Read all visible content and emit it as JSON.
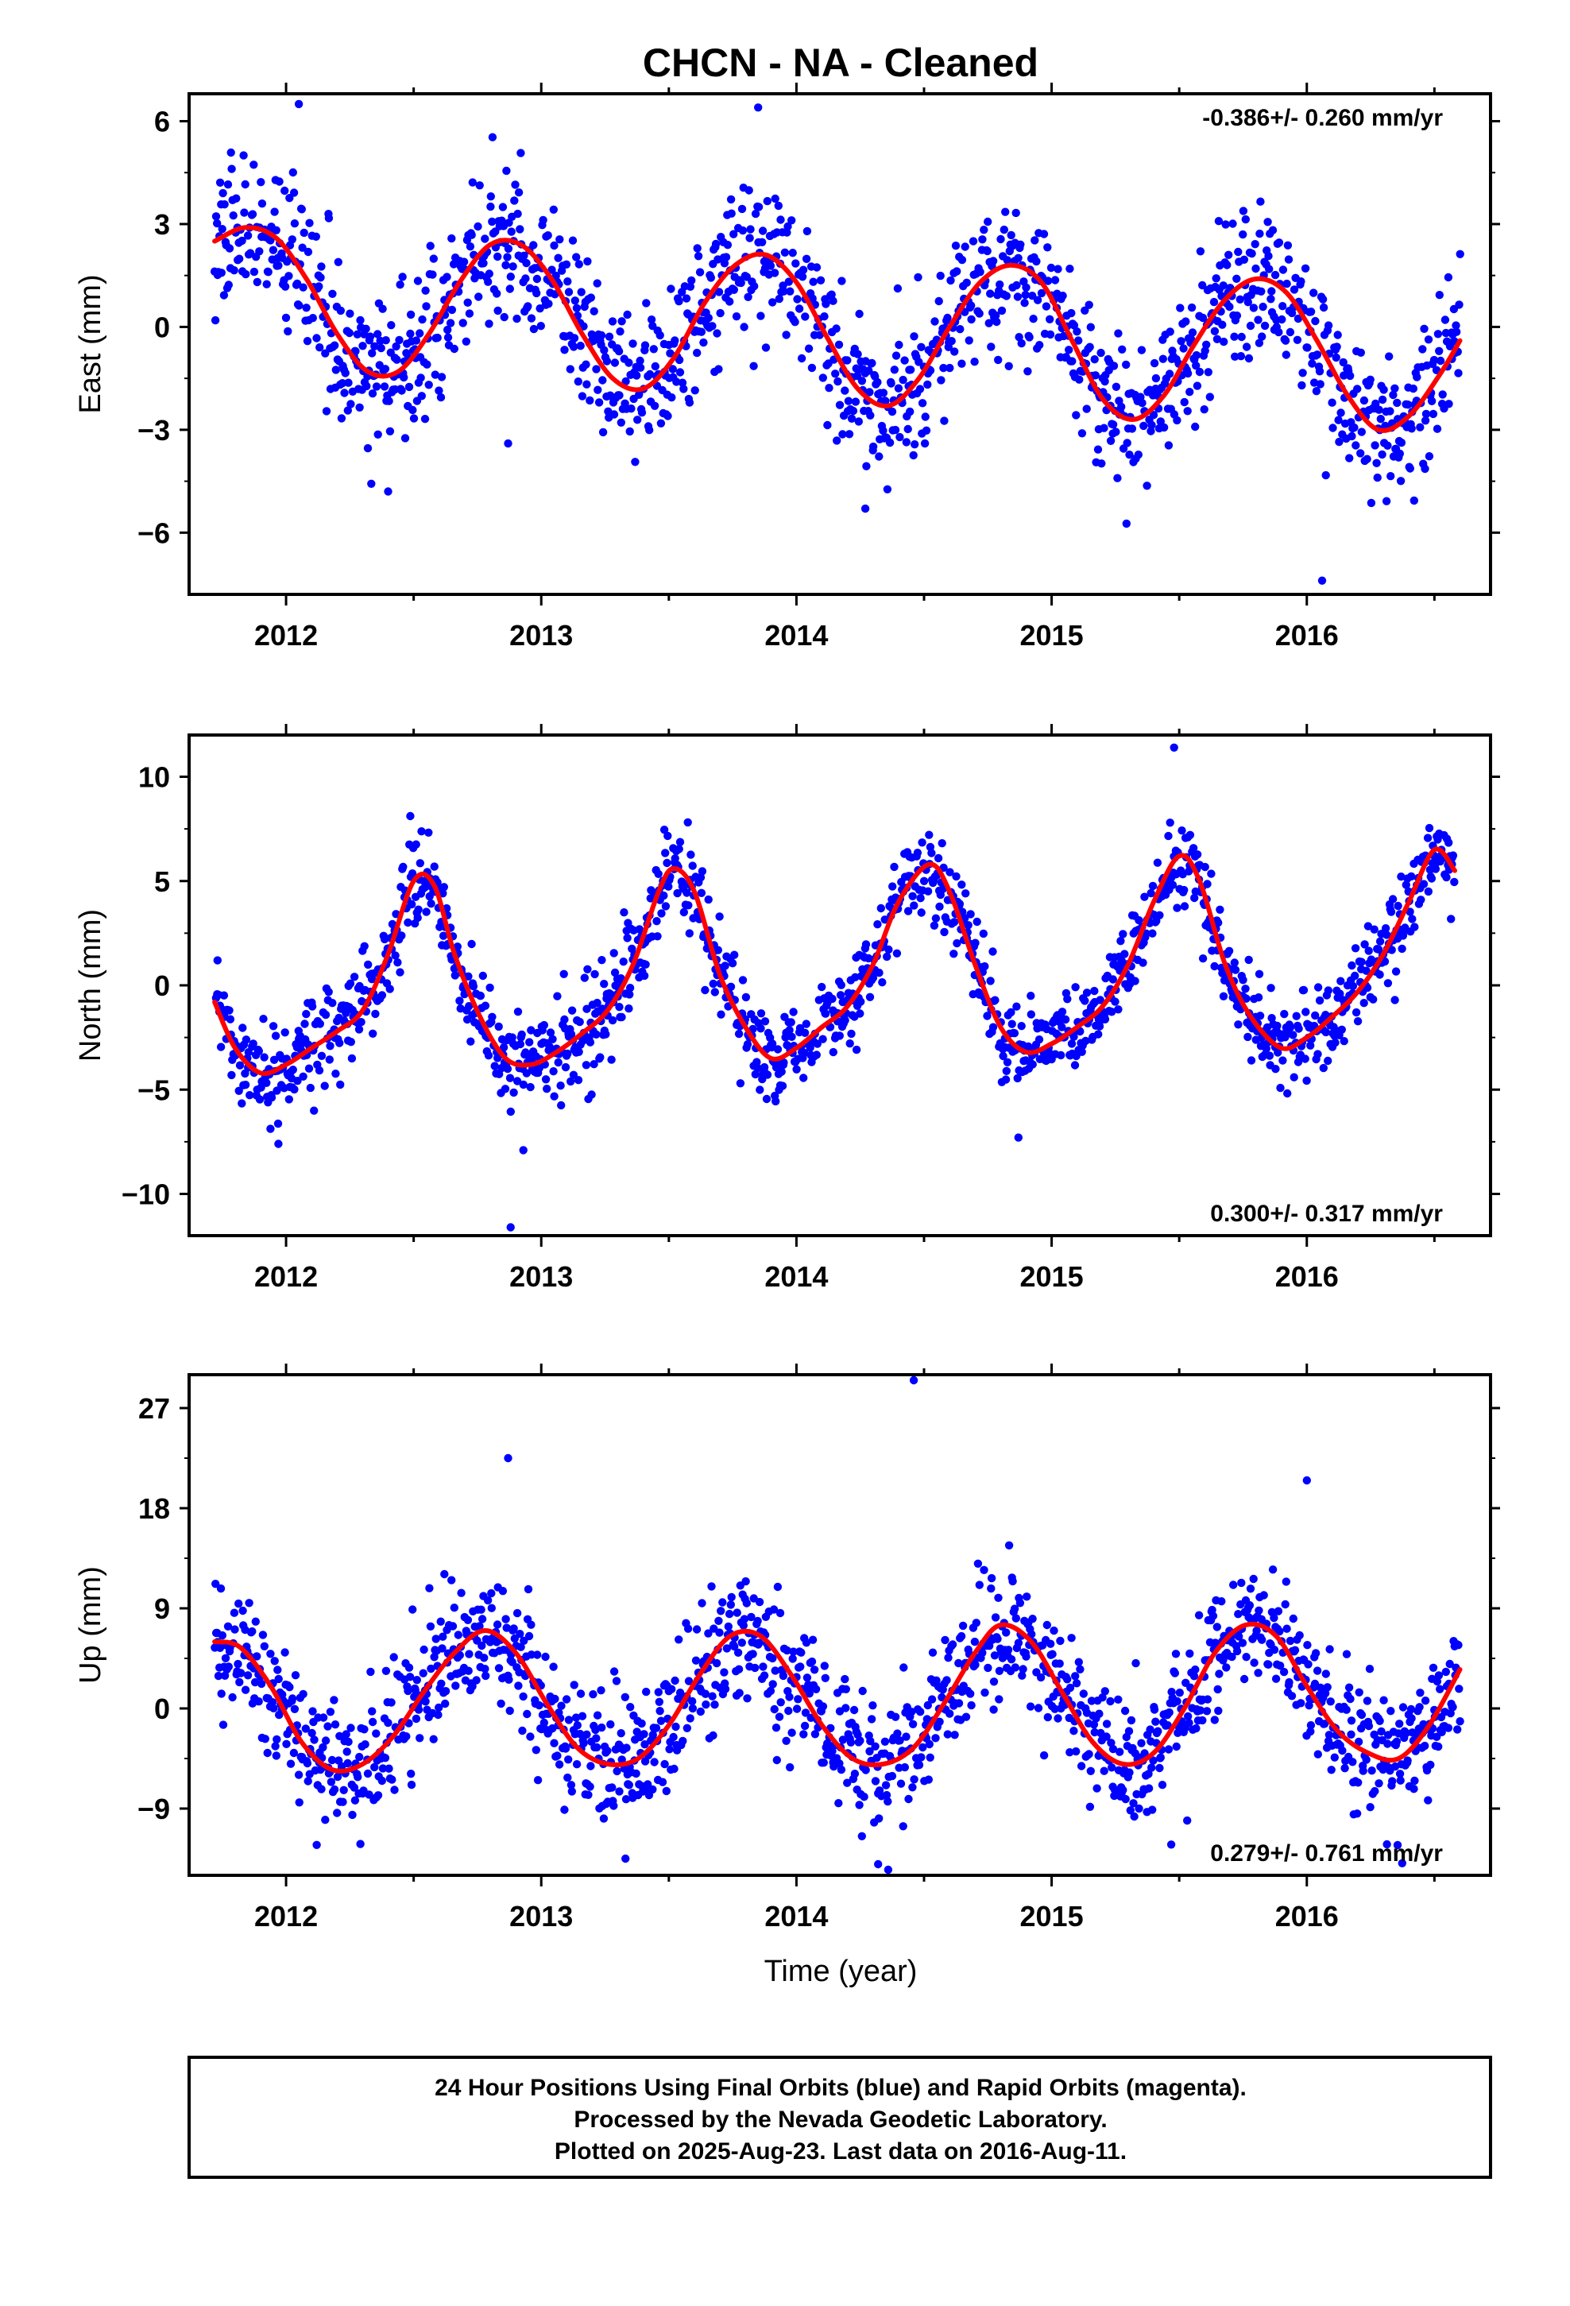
{
  "title": "CHCN  - NA - Cleaned",
  "x_axis_label": "Time (year)",
  "footer": {
    "line1": "24 Hour Positions Using Final Orbits (blue) and Rapid Orbits (magenta).",
    "line2": "Processed by the Nevada Geodetic Laboratory.",
    "line3": "Plotted on 2025-Aug-23. Last data on 2016-Aug-11."
  },
  "colors": {
    "points": "#0000ff",
    "model": "#ff0000",
    "axes": "#000000"
  },
  "chart_data": [
    {
      "type": "scatter",
      "name": "east",
      "ylabel": "East (mm)",
      "xlim": [
        2011.62,
        2016.72
      ],
      "ylim": [
        -7.8,
        6.8
      ],
      "yticks": [
        -6,
        -3,
        0,
        3,
        6
      ],
      "ytick_labels": [
        "−6",
        "−3",
        "0",
        "3",
        "6"
      ],
      "xticks": [
        2012,
        2013,
        2014,
        2015,
        2016
      ],
      "xtick_labels": [
        "2012",
        "2013",
        "2014",
        "2015",
        "2016"
      ],
      "rate_text": "-0.386+/- 0.260 mm/yr",
      "rate_position": "top-right",
      "model": {
        "x": [
          2011.72,
          2011.84,
          2011.96,
          2012.08,
          2012.2,
          2012.32,
          2012.44,
          2012.56,
          2012.68,
          2012.8,
          2012.92,
          2013.04,
          2013.16,
          2013.28,
          2013.4,
          2013.52,
          2013.64,
          2013.76,
          2013.88,
          2014.0,
          2014.12,
          2014.24,
          2014.36,
          2014.48,
          2014.6,
          2014.72,
          2014.84,
          2014.96,
          2015.08,
          2015.2,
          2015.32,
          2015.44,
          2015.56,
          2015.68,
          2015.8,
          2015.92,
          2016.04,
          2016.16,
          2016.28,
          2016.4,
          2016.52,
          2016.6
        ],
        "y": [
          2.5,
          2.9,
          2.6,
          1.4,
          -0.2,
          -1.3,
          -1.3,
          -0.2,
          1.3,
          2.4,
          2.4,
          1.4,
          -0.2,
          -1.5,
          -1.8,
          -0.9,
          0.7,
          1.8,
          2.1,
          1.3,
          -0.3,
          -1.8,
          -2.3,
          -1.5,
          0.0,
          1.3,
          1.8,
          1.3,
          -0.4,
          -2.1,
          -2.7,
          -2.0,
          -0.5,
          0.8,
          1.4,
          1.0,
          -0.4,
          -2.0,
          -3.0,
          -2.6,
          -1.4,
          -0.4
        ]
      },
      "n_points": 1600,
      "seed": 11,
      "noise_sd": 1.05,
      "outliers": [
        {
          "x": 2016.06,
          "y": -7.4
        },
        {
          "x": 2012.05,
          "y": 6.5
        },
        {
          "x": 2012.4,
          "y": -4.8
        },
        {
          "x": 2012.87,
          "y": -3.4
        },
        {
          "x": 2013.85,
          "y": 6.4
        },
        {
          "x": 2014.27,
          "y": -5.3
        }
      ]
    },
    {
      "type": "scatter",
      "name": "north",
      "ylabel": "North (mm)",
      "xlim": [
        2011.62,
        2016.72
      ],
      "ylim": [
        -12,
        12
      ],
      "yticks": [
        -10,
        -5,
        0,
        5,
        10
      ],
      "ytick_labels": [
        "−10",
        "−5",
        "0",
        "5",
        "10"
      ],
      "xticks": [
        2012,
        2013,
        2014,
        2015,
        2016
      ],
      "xtick_labels": [
        "2012",
        "2013",
        "2014",
        "2015",
        "2016"
      ],
      "rate_text": "0.300+/- 0.317 mm/yr",
      "rate_position": "bottom-right",
      "model": {
        "x": [
          2011.72,
          2011.8,
          2011.9,
          2012.0,
          2012.1,
          2012.2,
          2012.3,
          2012.4,
          2012.5,
          2012.58,
          2012.66,
          2012.76,
          2012.86,
          2012.96,
          2013.06,
          2013.16,
          2013.26,
          2013.36,
          2013.46,
          2013.52,
          2013.6,
          2013.7,
          2013.8,
          2013.9,
          2014.0,
          2014.1,
          2014.2,
          2014.3,
          2014.4,
          2014.52,
          2014.6,
          2014.7,
          2014.8,
          2014.9,
          2015.0,
          2015.1,
          2015.2,
          2015.3,
          2015.4,
          2015.5,
          2015.58,
          2015.68,
          2015.78,
          2015.9,
          2016.0,
          2016.1,
          2016.2,
          2016.3,
          2016.4,
          2016.5,
          2016.58
        ],
        "y": [
          -0.8,
          -3.0,
          -4.2,
          -3.8,
          -3.0,
          -2.2,
          -1.2,
          1.5,
          5.0,
          4.8,
          1.5,
          -1.5,
          -3.5,
          -3.8,
          -3.2,
          -2.3,
          -1.2,
          1.0,
          4.5,
          5.6,
          4.5,
          0.5,
          -2.0,
          -3.5,
          -3.0,
          -2.0,
          -1.0,
          1.0,
          4.0,
          5.8,
          4.5,
          1.0,
          -2.0,
          -3.2,
          -2.8,
          -2.0,
          -1.0,
          1.0,
          4.0,
          6.2,
          5.0,
          1.0,
          -1.5,
          -3.0,
          -2.5,
          -1.5,
          -0.3,
          1.5,
          4.0,
          6.5,
          5.5
        ]
      },
      "n_points": 1600,
      "seed": 23,
      "noise_sd": 1.05,
      "outliers": [
        {
          "x": 2012.88,
          "y": -11.6
        },
        {
          "x": 2012.93,
          "y": -7.9
        },
        {
          "x": 2015.48,
          "y": 11.4
        },
        {
          "x": 2014.87,
          "y": -7.3
        },
        {
          "x": 2011.97,
          "y": -7.6
        }
      ]
    },
    {
      "type": "scatter",
      "name": "up",
      "ylabel": "Up (mm)",
      "xlim": [
        2011.62,
        2016.72
      ],
      "ylim": [
        -15,
        30
      ],
      "yticks": [
        -9,
        0,
        9,
        18,
        27
      ],
      "ytick_labels": [
        "−9",
        "0",
        "9",
        "18",
        "27"
      ],
      "xticks": [
        2012,
        2013,
        2014,
        2015,
        2016
      ],
      "xtick_labels": [
        "2012",
        "2013",
        "2014",
        "2015",
        "2016"
      ],
      "rate_text": "0.279+/- 0.761 mm/yr",
      "rate_position": "bottom-right",
      "model": {
        "x": [
          2011.72,
          2011.82,
          2011.94,
          2012.06,
          2012.18,
          2012.3,
          2012.42,
          2012.54,
          2012.66,
          2012.78,
          2012.9,
          2013.02,
          2013.14,
          2013.26,
          2013.38,
          2013.5,
          2013.62,
          2013.74,
          2013.86,
          2013.98,
          2014.1,
          2014.22,
          2014.34,
          2014.46,
          2014.58,
          2014.7,
          2014.8,
          2014.92,
          2015.04,
          2015.16,
          2015.28,
          2015.4,
          2015.52,
          2015.64,
          2015.76,
          2015.88,
          2016.0,
          2016.12,
          2016.24,
          2016.36,
          2016.48,
          2016.6
        ],
        "y": [
          6.0,
          5.5,
          2.0,
          -3.0,
          -5.5,
          -5.0,
          -2.5,
          1.5,
          5.0,
          7.0,
          5.0,
          0.5,
          -3.5,
          -5.0,
          -4.5,
          -1.5,
          3.0,
          6.5,
          6.5,
          3.0,
          -1.5,
          -4.5,
          -5.0,
          -3.5,
          0.5,
          5.0,
          7.5,
          6.0,
          1.5,
          -3.0,
          -5.0,
          -4.0,
          0.0,
          5.0,
          7.5,
          6.5,
          2.0,
          -2.0,
          -4.0,
          -4.5,
          -1.5,
          3.5
        ]
      },
      "n_points": 1600,
      "seed": 37,
      "noise_sd": 2.9,
      "outliers": [
        {
          "x": 2014.46,
          "y": 29.5
        },
        {
          "x": 2012.87,
          "y": 22.5
        },
        {
          "x": 2016.0,
          "y": 20.5
        },
        {
          "x": 2013.33,
          "y": -13.5
        },
        {
          "x": 2014.32,
          "y": -14.0
        }
      ]
    }
  ]
}
